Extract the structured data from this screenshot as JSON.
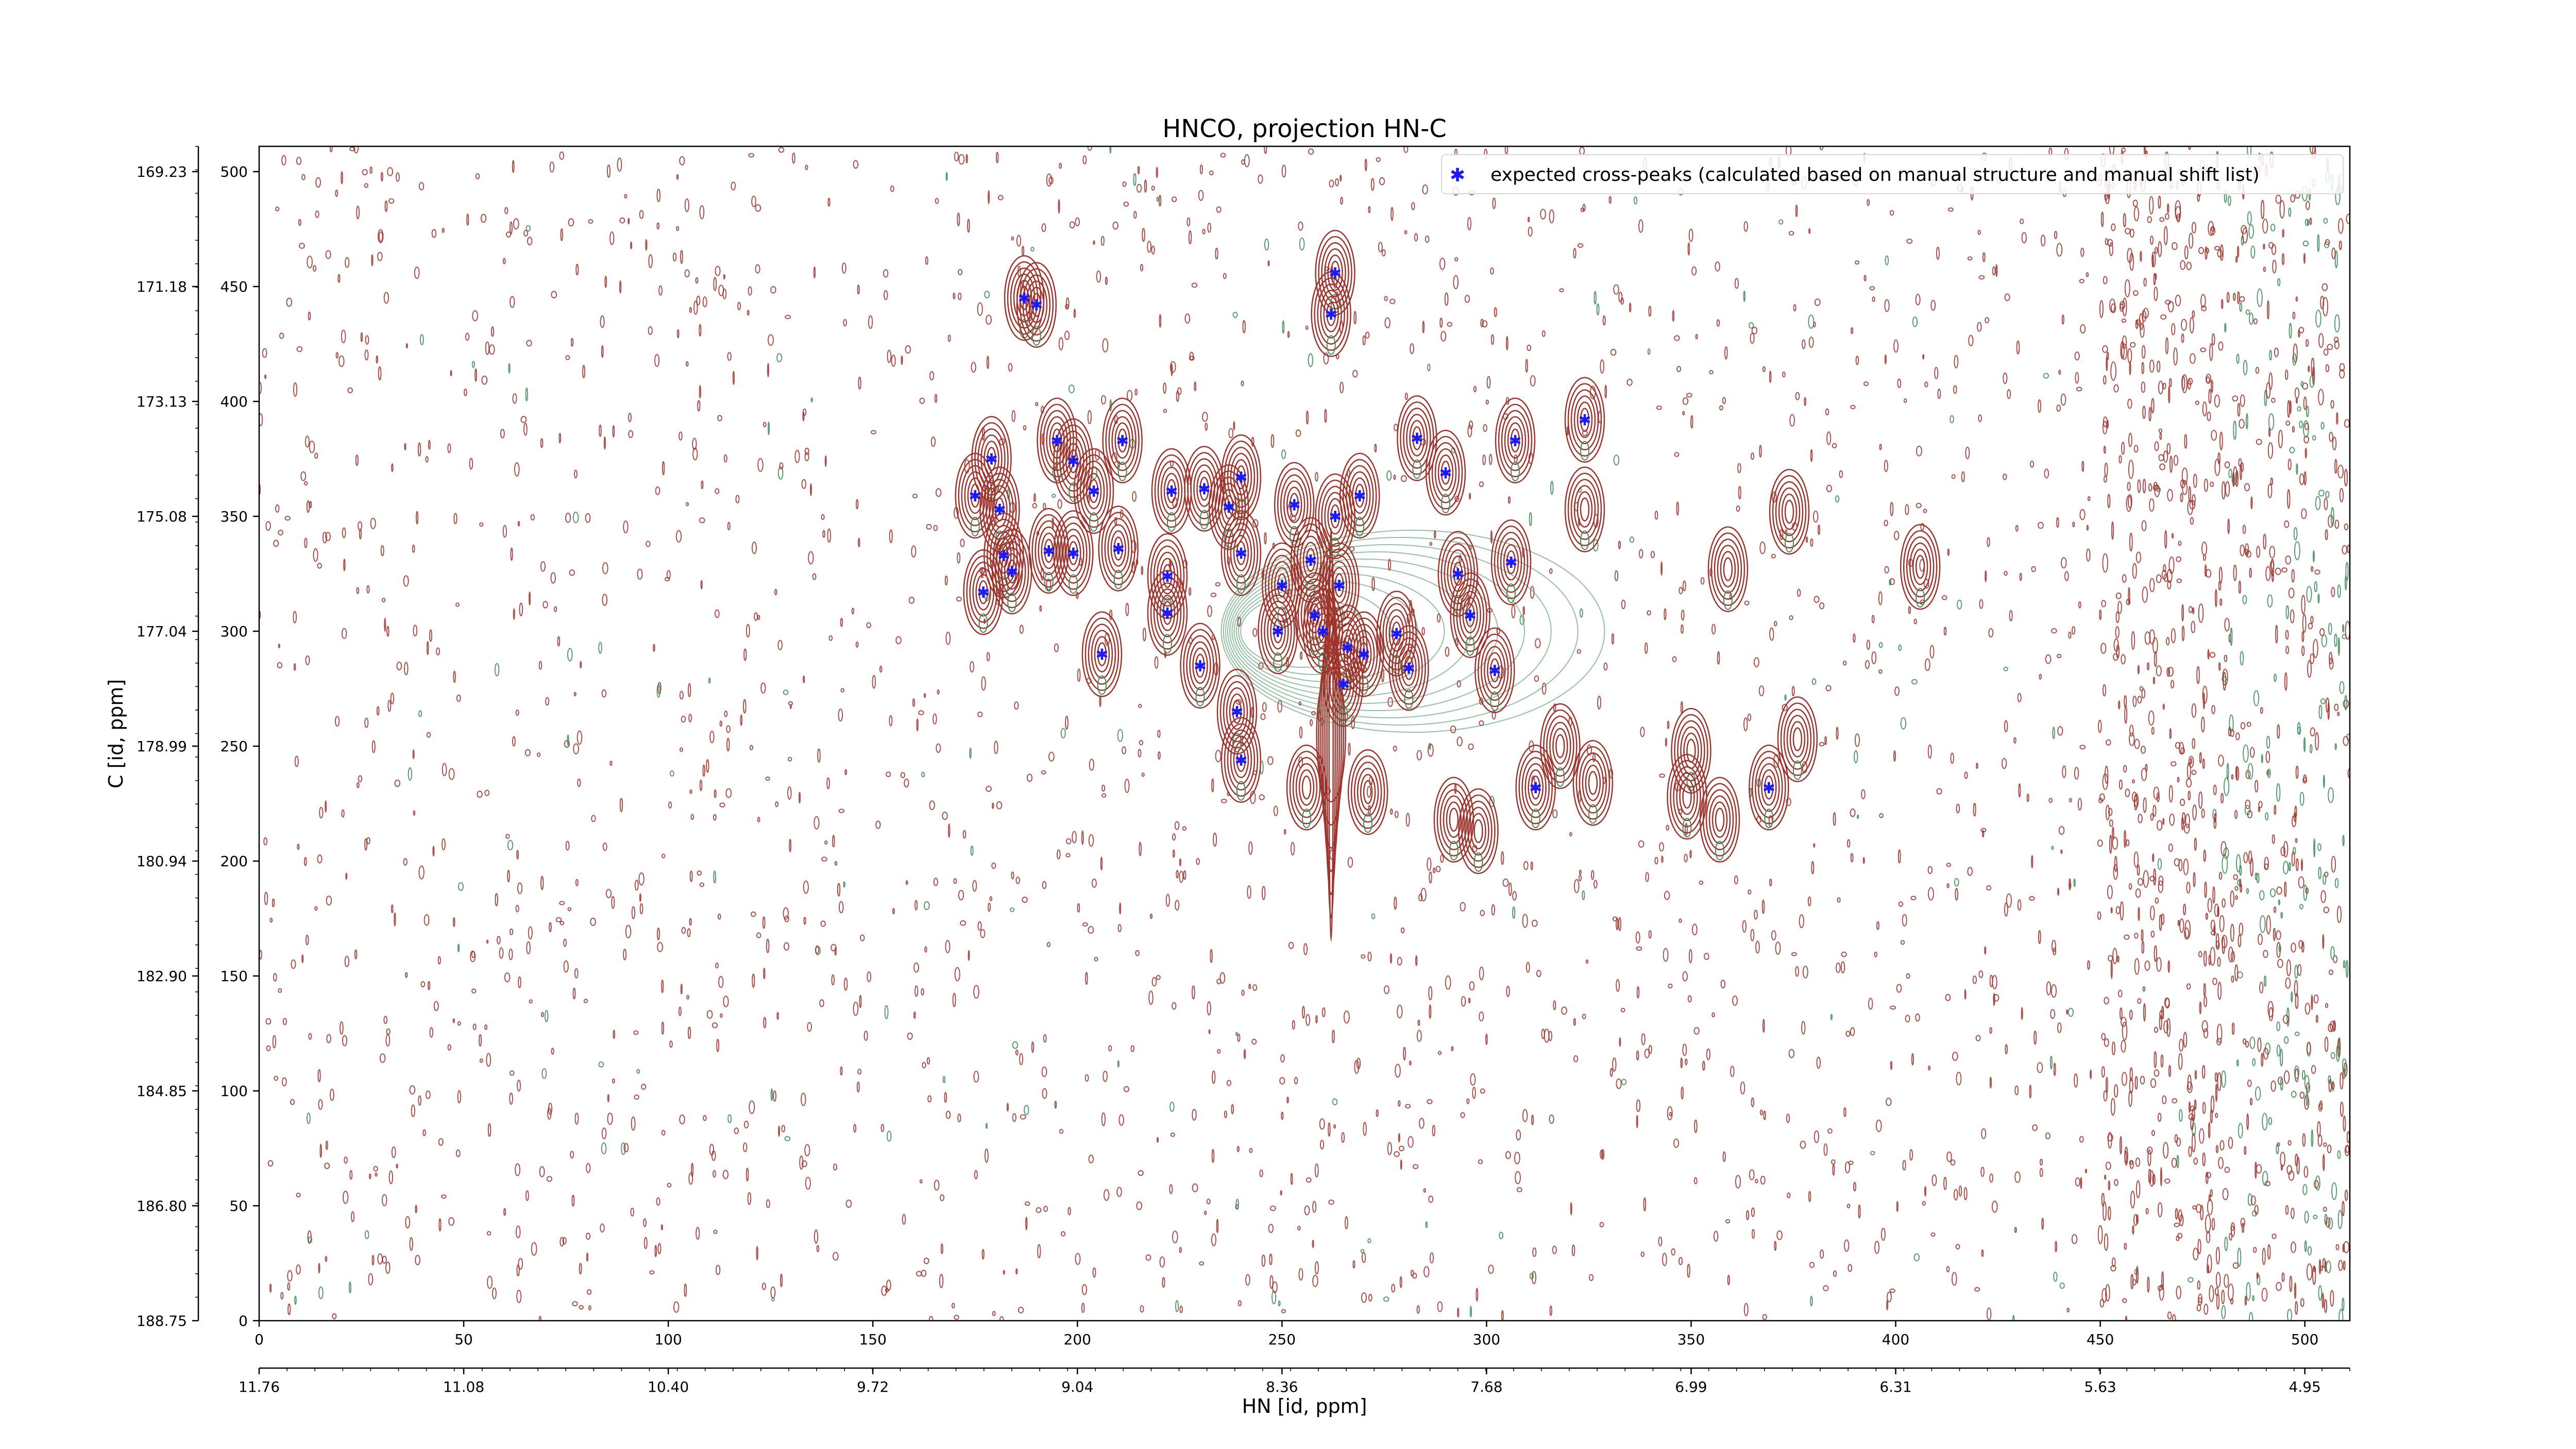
{
  "chart_data": {
    "type": "scatter",
    "title": "HNCO, projection HN-C",
    "xlabel": "HN [id, ppm]",
    "ylabel": "C [id, ppm]",
    "x_index_ticks": [
      "0",
      "50",
      "100",
      "150",
      "200",
      "250",
      "300",
      "350",
      "400",
      "450",
      "500"
    ],
    "x_ppm_ticks": [
      "11.76",
      "11.08",
      "10.40",
      "9.72",
      "9.04",
      "8.36",
      "7.68",
      "6.99",
      "6.31",
      "5.63",
      "4.95"
    ],
    "y_index_ticks": [
      "0",
      "50",
      "100",
      "150",
      "200",
      "250",
      "300",
      "350",
      "400",
      "450",
      "500"
    ],
    "y_ppm_ticks": [
      "188.75",
      "186.80",
      "184.85",
      "182.90",
      "180.94",
      "178.99",
      "177.04",
      "175.08",
      "173.13",
      "171.18",
      "169.23"
    ],
    "xlim": [
      0,
      511
    ],
    "ylim": [
      0,
      511
    ],
    "contour_colors": {
      "positive": "#a0342c",
      "negative": "#3d8c5a"
    },
    "legend": {
      "position": "top-right",
      "label": "expected cross-peaks (calculated based on manual structure and manual shift list)"
    },
    "series": [
      {
        "name": "expected cross-peaks (calculated based on manual structure and manual shift list)",
        "marker": "x",
        "color": "#1a1aff",
        "points": [
          {
            "x": 187,
            "y": 445
          },
          {
            "x": 190,
            "y": 442
          },
          {
            "x": 263,
            "y": 456
          },
          {
            "x": 262,
            "y": 438
          },
          {
            "x": 324,
            "y": 392
          },
          {
            "x": 307,
            "y": 383
          },
          {
            "x": 195,
            "y": 383
          },
          {
            "x": 211,
            "y": 383
          },
          {
            "x": 283,
            "y": 384
          },
          {
            "x": 179,
            "y": 375
          },
          {
            "x": 199,
            "y": 374
          },
          {
            "x": 290,
            "y": 369
          },
          {
            "x": 240,
            "y": 367
          },
          {
            "x": 175,
            "y": 359
          },
          {
            "x": 204,
            "y": 361
          },
          {
            "x": 223,
            "y": 361
          },
          {
            "x": 231,
            "y": 362
          },
          {
            "x": 269,
            "y": 359
          },
          {
            "x": 181,
            "y": 353
          },
          {
            "x": 237,
            "y": 354
          },
          {
            "x": 253,
            "y": 355
          },
          {
            "x": 263,
            "y": 350
          },
          {
            "x": 210,
            "y": 336
          },
          {
            "x": 193,
            "y": 335
          },
          {
            "x": 199,
            "y": 334
          },
          {
            "x": 240,
            "y": 334
          },
          {
            "x": 182,
            "y": 333
          },
          {
            "x": 184,
            "y": 326
          },
          {
            "x": 257,
            "y": 331
          },
          {
            "x": 306,
            "y": 330
          },
          {
            "x": 293,
            "y": 325
          },
          {
            "x": 222,
            "y": 324
          },
          {
            "x": 250,
            "y": 320
          },
          {
            "x": 264,
            "y": 320
          },
          {
            "x": 177,
            "y": 317
          },
          {
            "x": 222,
            "y": 308
          },
          {
            "x": 258,
            "y": 307
          },
          {
            "x": 296,
            "y": 307
          },
          {
            "x": 249,
            "y": 300
          },
          {
            "x": 260,
            "y": 300
          },
          {
            "x": 278,
            "y": 299
          },
          {
            "x": 266,
            "y": 293
          },
          {
            "x": 270,
            "y": 290
          },
          {
            "x": 206,
            "y": 290
          },
          {
            "x": 230,
            "y": 285
          },
          {
            "x": 281,
            "y": 284
          },
          {
            "x": 302,
            "y": 283
          },
          {
            "x": 265,
            "y": 277
          },
          {
            "x": 239,
            "y": 265
          },
          {
            "x": 240,
            "y": 244
          },
          {
            "x": 312,
            "y": 232
          },
          {
            "x": 369,
            "y": 232
          }
        ]
      }
    ]
  }
}
